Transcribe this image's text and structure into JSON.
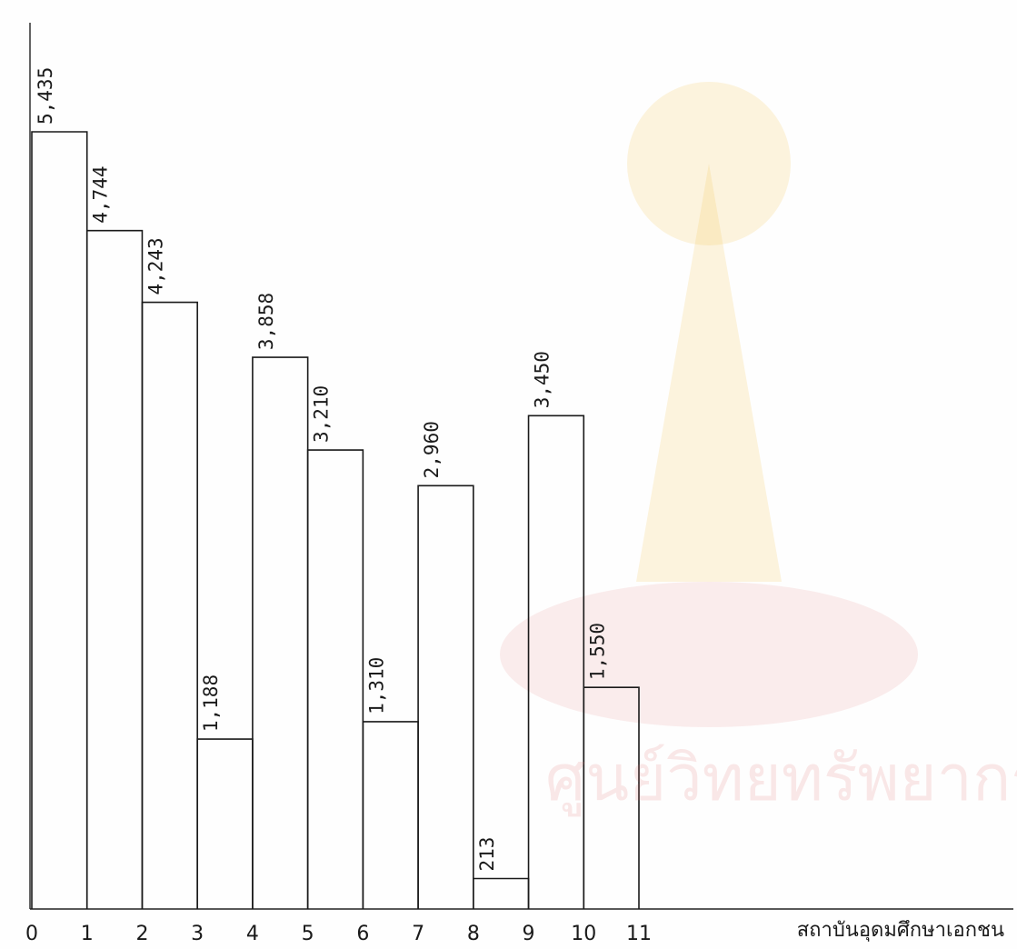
{
  "chart_data": {
    "type": "bar",
    "title": "",
    "xlabel": "สถาบันอุดมศึกษาเอกชน",
    "ylabel": "",
    "x_ticks": [
      "0",
      "1",
      "2",
      "3",
      "4",
      "5",
      "6",
      "7",
      "8",
      "9",
      "10",
      "11"
    ],
    "bars": [
      {
        "x_start": 0,
        "x_end": 1,
        "value": 5435,
        "label": "5,435"
      },
      {
        "x_start": 1,
        "x_end": 2,
        "value": 4744,
        "label": "4,744"
      },
      {
        "x_start": 2,
        "x_end": 3,
        "value": 4243,
        "label": "4,243"
      },
      {
        "x_start": 3,
        "x_end": 4,
        "value": 1188,
        "label": "1,188"
      },
      {
        "x_start": 4,
        "x_end": 5,
        "value": 3858,
        "label": "3,858"
      },
      {
        "x_start": 5,
        "x_end": 6,
        "value": 3210,
        "label": "3,210"
      },
      {
        "x_start": 6,
        "x_end": 7,
        "value": 1310,
        "label": "1,310"
      },
      {
        "x_start": 7,
        "x_end": 8,
        "value": 2960,
        "label": "2,960"
      },
      {
        "x_start": 8,
        "x_end": 9,
        "value": 213,
        "label": "213"
      },
      {
        "x_start": 9,
        "x_end": 10,
        "value": 3450,
        "label": "3,450"
      },
      {
        "x_start": 10,
        "x_end": 11,
        "value": 1550,
        "label": "1,550"
      }
    ],
    "xlim": [
      0,
      11
    ],
    "ylim": [
      0,
      5435
    ],
    "grid": false,
    "legend": "none"
  },
  "watermark": {
    "text": "ศูนย์วิทยทรัพยากร",
    "color": "#f4c24a"
  }
}
